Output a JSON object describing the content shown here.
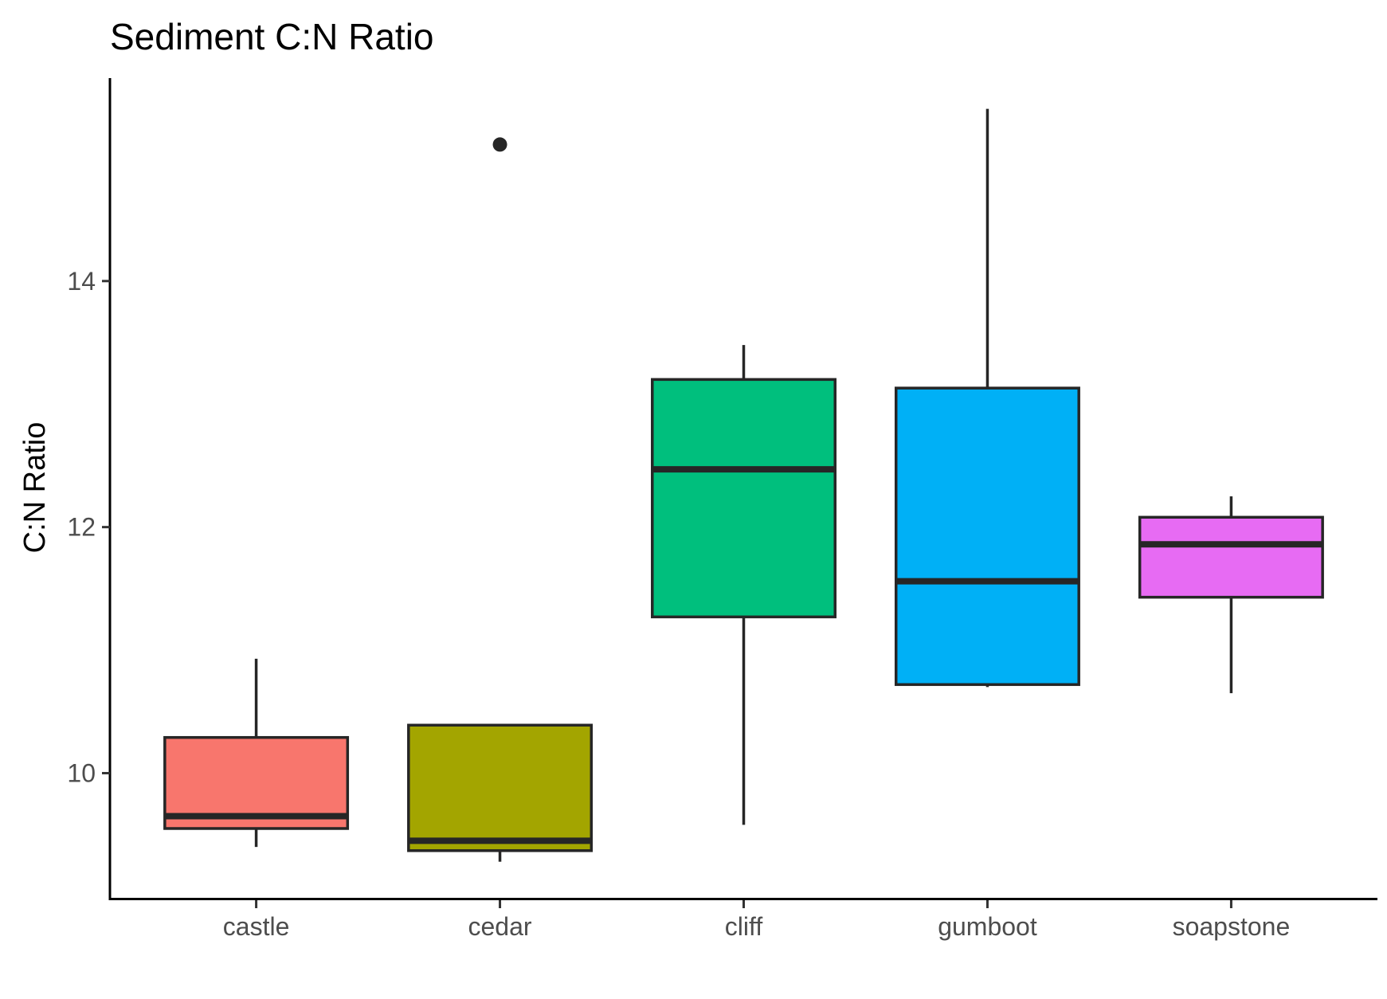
{
  "chart_data": {
    "type": "box",
    "title": "Sediment C:N Ratio",
    "xlabel": "",
    "ylabel": "C:N Ratio",
    "ylim": [
      8.98,
      15.65
    ],
    "yticks": [
      10,
      12,
      14
    ],
    "ytick_labels": [
      "10",
      "12",
      "14"
    ],
    "grid": false,
    "legend": "none",
    "categories": [
      "castle",
      "cedar",
      "cliff",
      "gumboot",
      "soapstone"
    ],
    "colors": [
      "#F8766D",
      "#A3A500",
      "#00BF7D",
      "#00B0F6",
      "#E76BF3"
    ],
    "boxes": [
      {
        "name": "castle",
        "whisker_low": 9.4,
        "q1": 9.55,
        "median": 9.65,
        "q3": 10.29,
        "whisker_high": 10.93,
        "outliers": []
      },
      {
        "name": "cedar",
        "whisker_low": 9.28,
        "q1": 9.37,
        "median": 9.45,
        "q3": 10.39,
        "whisker_high": 10.39,
        "outliers": [
          15.11
        ]
      },
      {
        "name": "cliff",
        "whisker_low": 9.58,
        "q1": 11.27,
        "median": 12.47,
        "q3": 13.2,
        "whisker_high": 13.48,
        "outliers": []
      },
      {
        "name": "gumboot",
        "whisker_low": 10.7,
        "q1": 10.72,
        "median": 11.56,
        "q3": 13.13,
        "whisker_high": 15.4,
        "outliers": []
      },
      {
        "name": "soapstone",
        "whisker_low": 10.65,
        "q1": 11.43,
        "median": 11.86,
        "q3": 12.08,
        "whisker_high": 12.25,
        "outliers": []
      }
    ]
  }
}
